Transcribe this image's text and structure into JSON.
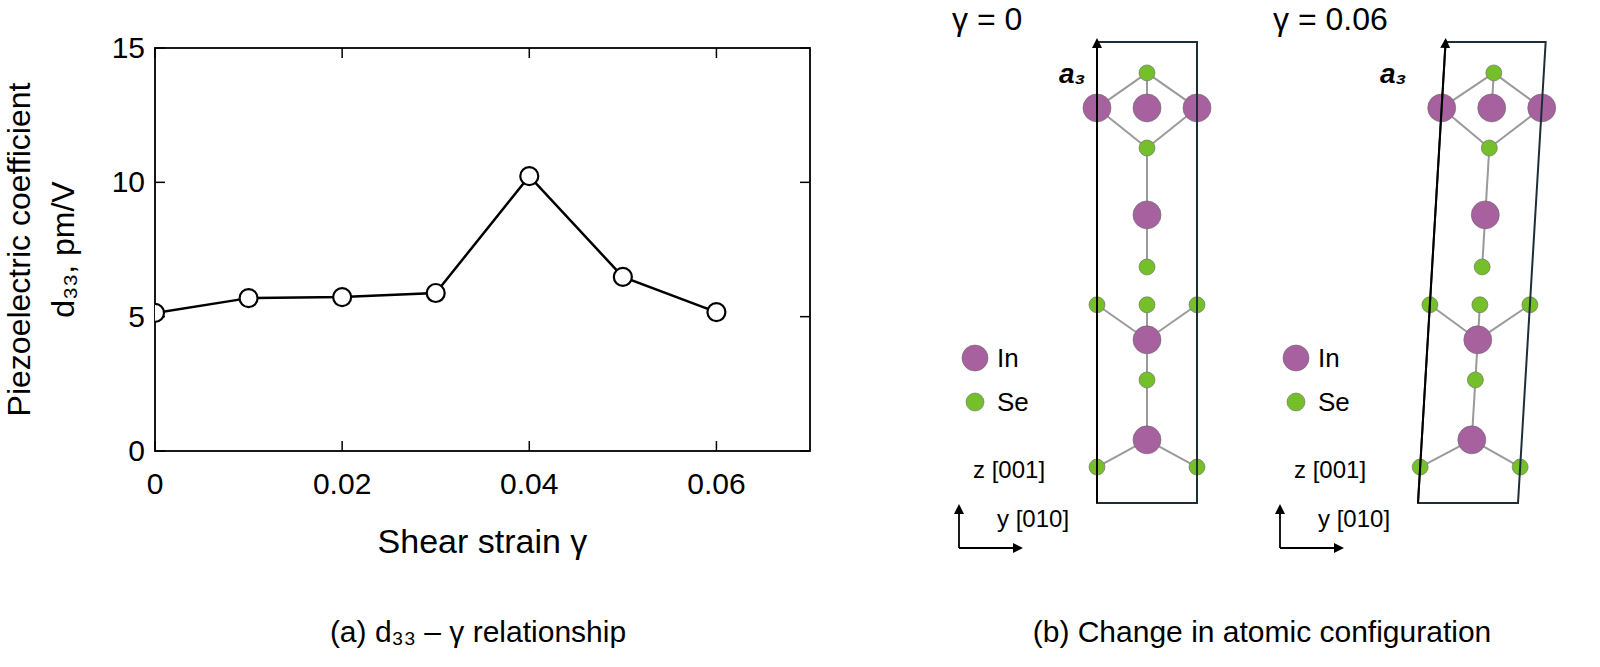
{
  "chart_data": {
    "type": "line",
    "x_label": "Shear strain γ",
    "y_label": [
      "Piezoelectric coefficient",
      "d₃₃, pm/V"
    ],
    "caption": "(a) d₃₃ – γ relationship",
    "x": [
      0,
      0.01,
      0.02,
      0.03,
      0.04,
      0.05,
      0.06
    ],
    "values": [
      5.14,
      5.69,
      5.73,
      5.88,
      10.23,
      6.48,
      5.17
    ],
    "color": "#000000",
    "marker": "circle",
    "line_style": "solid",
    "xlim": [
      0,
      0.07
    ],
    "xticks": [
      0,
      0.02,
      0.04,
      0.06
    ],
    "ylim": [
      0,
      15
    ],
    "yticks": [
      0,
      5,
      10,
      15
    ],
    "grid": false
  },
  "panel_b": {
    "caption": "(b) Change in atomic configuration",
    "species": [
      {
        "label": "In",
        "color": "#a8619f"
      },
      {
        "label": "Se",
        "color": "#74bf2a"
      }
    ],
    "panels": [
      {
        "title": "γ = 0",
        "shear": 0,
        "vector": "a₃",
        "axis_z": "z [001]",
        "axis_y": "y [010]"
      },
      {
        "title": "γ = 0.06",
        "shear": 0.06,
        "vector": "a₃",
        "axis_z": "z [001]",
        "axis_y": "y [010]"
      }
    ]
  }
}
